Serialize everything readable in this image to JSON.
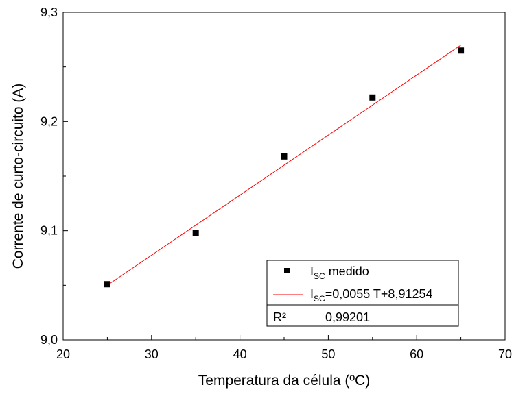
{
  "chart_data": {
    "type": "scatter",
    "xlabel": "Temperatura da célula (ºC)",
    "ylabel": "Corrente de curto-circuito (A)",
    "xlim": [
      20,
      70
    ],
    "ylim": [
      9.0,
      9.3
    ],
    "x_ticks": [
      20,
      30,
      40,
      50,
      60,
      70
    ],
    "y_ticks": [
      9.0,
      9.1,
      9.2,
      9.3
    ],
    "x_tick_labels": [
      "20",
      "30",
      "40",
      "50",
      "60",
      "70"
    ],
    "y_tick_labels": [
      "9,0",
      "9,1",
      "9,2",
      "9,3"
    ],
    "grid": false,
    "legend_position": "bottom-right",
    "series": [
      {
        "name": "I_SC medido",
        "kind": "scatter",
        "marker": "square",
        "color": "#000000",
        "x": [
          25,
          35,
          45,
          55,
          65
        ],
        "y": [
          9.051,
          9.098,
          9.168,
          9.222,
          9.265
        ]
      },
      {
        "name": "I_SC=0,0055 T+8,91254",
        "kind": "line",
        "color": "#ff0000",
        "slope": 0.0055,
        "intercept": 8.91254,
        "x": [
          25,
          65
        ]
      }
    ],
    "legend": {
      "entry1": {
        "main": "I",
        "sub": "SC",
        "rest": " medido"
      },
      "entry2": {
        "main": "I",
        "sub": "SC",
        "rest": "=0,0055 T+8,91254"
      },
      "r2_label": "R²",
      "r2_value": "0,99201"
    }
  }
}
